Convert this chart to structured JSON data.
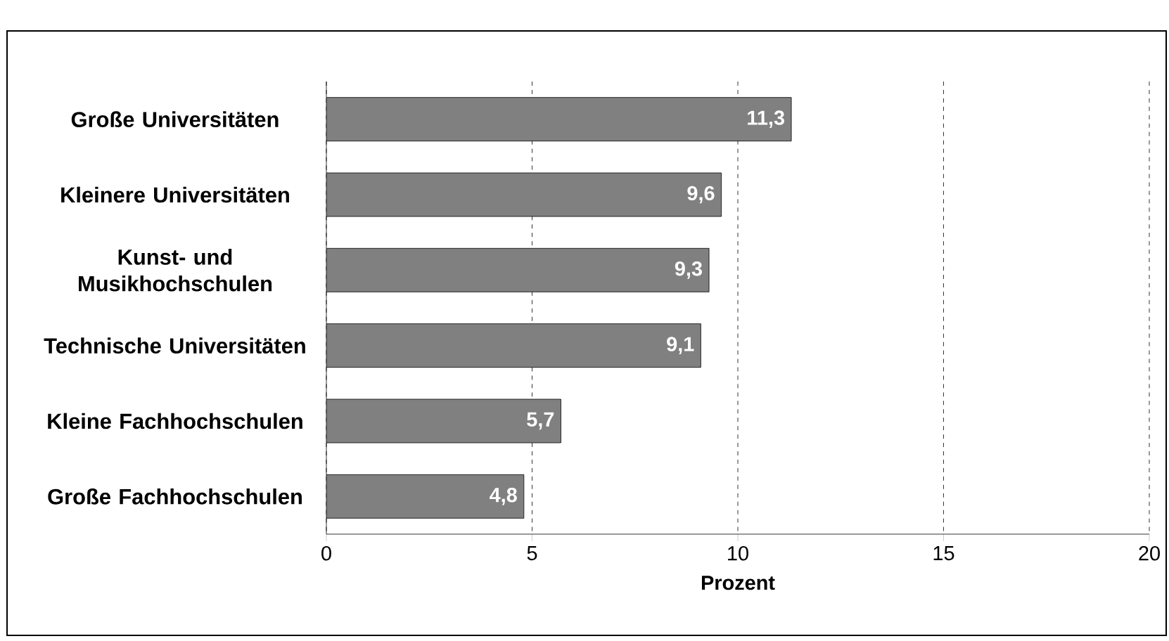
{
  "chart_data": {
    "type": "bar",
    "orientation": "horizontal",
    "xlabel": "Prozent",
    "categories": [
      "Große Universitäten",
      "Kleinere Universitäten",
      "Kunst- und Musikhochschulen",
      "Technische Universitäten",
      "Kleine Fachhochschulen",
      "Große Fachhochschulen"
    ],
    "values": [
      11.3,
      9.6,
      9.3,
      9.1,
      5.7,
      4.8
    ],
    "value_labels": [
      "11,3",
      "9,6",
      "9,3",
      "9,1",
      "5,7",
      "4,8"
    ],
    "color": "#808080",
    "xlim": [
      0,
      20
    ],
    "xticks": [
      0,
      5,
      10,
      15,
      20
    ],
    "grid": "x"
  }
}
